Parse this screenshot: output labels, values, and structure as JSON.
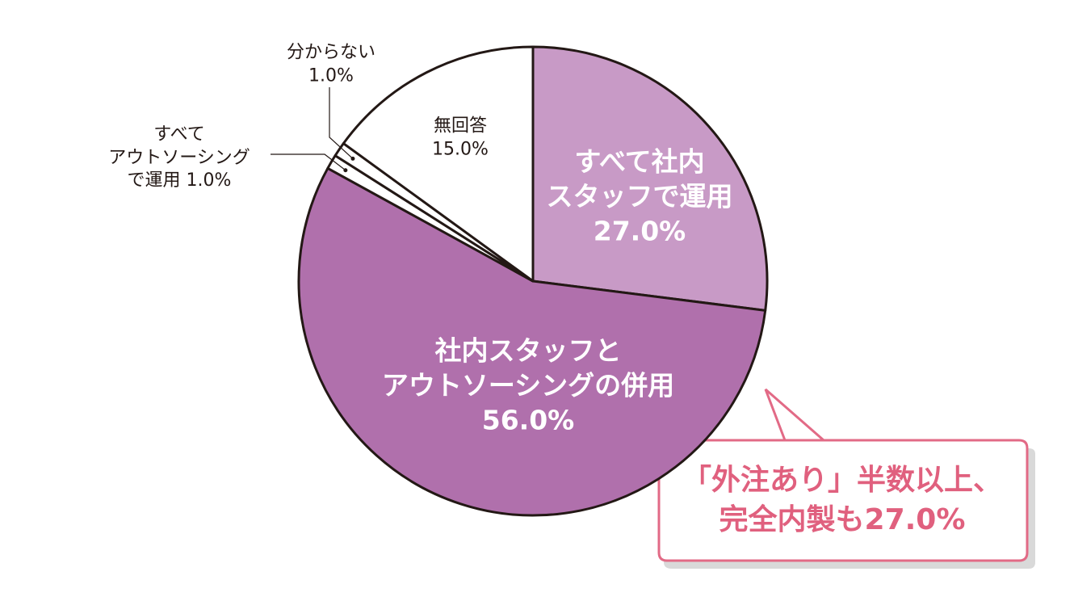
{
  "chart_data": {
    "type": "pie",
    "categories": [
      "すべて社内\nスタッフで運用",
      "社内スタッフと\nアウトソーシングの併用",
      "すべて\nアウトソーシング\nで運用",
      "分からない",
      "無回答"
    ],
    "values": [
      27.0,
      56.0,
      1.0,
      1.0,
      15.0
    ],
    "value_labels": [
      "27.0%",
      "56.0%",
      "1.0%",
      "1.0%",
      "15.0%"
    ],
    "colors": [
      "#c89ac6",
      "#b070ac",
      "#ffffff",
      "#ffffff",
      "#ffffff"
    ],
    "annotation": "「外注あり」半数以上、\n完全内製も27.0%"
  }
}
